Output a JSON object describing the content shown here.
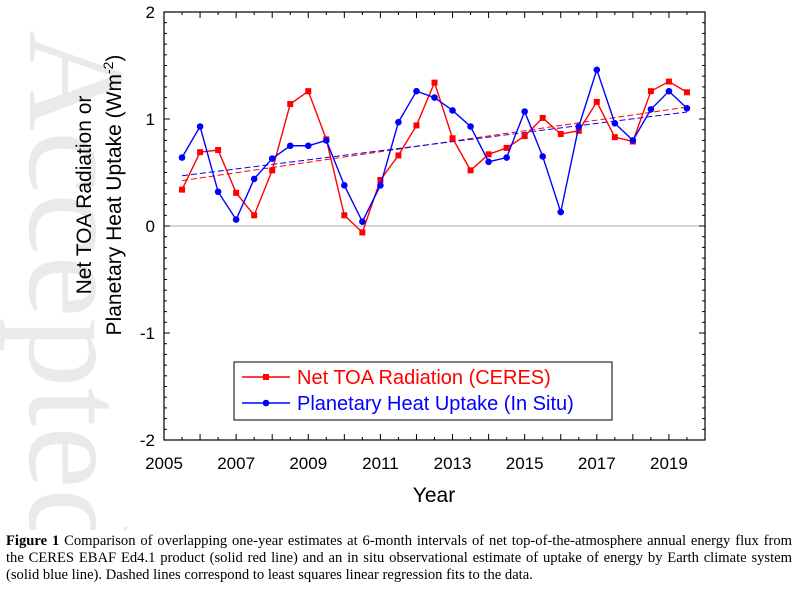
{
  "caption": {
    "label": "Figure 1",
    "text": "Comparison of overlapping one-year estimates at 6-month intervals of net top-of-the-atmosphere annual energy flux from the CERES EBAF Ed4.1 product (solid red line) and an in situ observational estimate of uptake of energy by Earth climate system (solid blue line). Dashed lines correspond to least squares linear regression fits to the data."
  },
  "colors": {
    "red": "#ff0000",
    "blue": "#0000ff",
    "zero_line": "#aaaaaa",
    "axis": "#000000"
  },
  "chart_data": {
    "type": "line",
    "xlabel": "Year",
    "ylabel_line1": "Net TOA Radiation or",
    "ylabel_line2": "Planetary Heat Uptake (Wm",
    "ylabel_sup": "-2",
    "ylabel_close": ")",
    "xlim": [
      2005,
      2020
    ],
    "ylim": [
      -2,
      2
    ],
    "xticks": [
      2005,
      2007,
      2009,
      2011,
      2013,
      2015,
      2017,
      2019
    ],
    "xtick_labels": [
      "2005",
      "2007",
      "2009",
      "2011",
      "2013",
      "2015",
      "2017",
      "2019"
    ],
    "yticks": [
      -2,
      -1,
      0,
      1,
      2
    ],
    "ytick_labels": [
      "-2",
      "-1",
      "0",
      "1",
      "2"
    ],
    "zero_line": true,
    "legend_position": "bottom-center",
    "series": [
      {
        "name": "Net TOA Radiation (CERES)",
        "color": "red",
        "marker": "square",
        "x": [
          2005.5,
          2006,
          2006.5,
          2007,
          2007.5,
          2008,
          2008.5,
          2009,
          2009.5,
          2010,
          2010.5,
          2011,
          2011.5,
          2012,
          2012.5,
          2013,
          2013.5,
          2014,
          2014.5,
          2015,
          2015.5,
          2016,
          2016.5,
          2017,
          2017.5,
          2018,
          2018.5,
          2019,
          2019.5
        ],
        "y": [
          0.34,
          0.69,
          0.71,
          0.31,
          0.1,
          0.52,
          1.14,
          1.26,
          0.81,
          0.1,
          -0.06,
          0.43,
          0.66,
          0.94,
          1.34,
          0.82,
          0.52,
          0.67,
          0.73,
          0.84,
          1.01,
          0.86,
          0.89,
          1.16,
          0.83,
          0.79,
          1.26,
          1.35,
          1.25
        ],
        "trend": [
          0.4,
          1.12
        ]
      },
      {
        "name": "Planetary Heat Uptake (In Situ)",
        "color": "blue",
        "marker": "circle",
        "x": [
          2005.5,
          2006,
          2006.5,
          2007,
          2007.5,
          2008,
          2008.5,
          2009,
          2009.5,
          2010,
          2010.5,
          2011,
          2011.5,
          2012,
          2012.5,
          2013,
          2013.5,
          2014,
          2014.5,
          2015,
          2015.5,
          2016,
          2016.5,
          2017,
          2017.5,
          2018,
          2018.5,
          2019,
          2019.5
        ],
        "y": [
          0.64,
          0.93,
          0.32,
          0.06,
          0.44,
          0.63,
          0.75,
          0.75,
          0.8,
          0.38,
          0.04,
          0.38,
          0.97,
          1.26,
          1.2,
          1.08,
          0.93,
          0.6,
          0.64,
          1.07,
          0.65,
          0.13,
          0.93,
          1.46,
          0.96,
          0.8,
          1.09,
          1.26,
          1.1
        ]
      }
    ]
  }
}
